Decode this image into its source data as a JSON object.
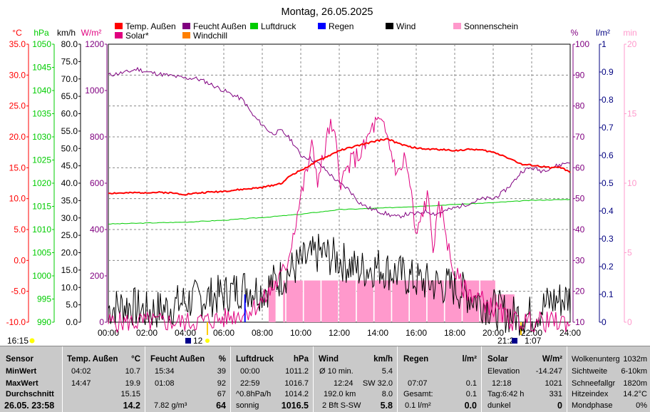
{
  "chart_data": {
    "type": "line",
    "title": "Montag, 26.05.2025",
    "legend": [
      {
        "label": "Temp. Außen",
        "color": "#ff0000"
      },
      {
        "label": "Feucht Außen",
        "color": "#800080"
      },
      {
        "label": "Luftdruck",
        "color": "#00cc00"
      },
      {
        "label": "Regen",
        "color": "#0000ff"
      },
      {
        "label": "Wind",
        "color": "#000000"
      },
      {
        "label": "Sonnenschein",
        "color": "#ff99cc"
      },
      {
        "label": "Solar*",
        "color": "#e0007f"
      },
      {
        "label": "Windchill",
        "color": "#ff8000"
      }
    ],
    "axis_units": {
      "temp": "°C",
      "pressure": "hPa",
      "wind": "km/h",
      "solar": "W/m²",
      "humidity": "%",
      "rain": "l/m²",
      "sun": "min"
    },
    "x_ticks": [
      "00:00",
      "02:00",
      "04:00",
      "06:00",
      "08:00",
      "10:00",
      "12:00",
      "14:00",
      "16:00",
      "18:00",
      "20:00",
      "22:00",
      "24:00"
    ],
    "temp_ticks": [
      "35.0",
      "30.0",
      "25.0",
      "20.0",
      "15.0",
      "10.0",
      "5.0",
      "0.0",
      "-5.0",
      "-10.0"
    ],
    "pressure_ticks": [
      "1050",
      "1045",
      "1040",
      "1035",
      "1030",
      "1025",
      "1020",
      "1015",
      "1010",
      "1005",
      "1000",
      "995",
      "990"
    ],
    "wind_ticks": [
      "80.0",
      "75.0",
      "70.0",
      "65.0",
      "60.0",
      "55.0",
      "50.0",
      "45.0",
      "40.0",
      "35.0",
      "30.0",
      "25.0",
      "20.0",
      "15.0",
      "10.0",
      "5.0",
      "0.0"
    ],
    "solar_ticks": [
      "1200",
      "1000",
      "800",
      "600",
      "400",
      "200",
      "0"
    ],
    "humidity_ticks": [
      "100",
      "90",
      "80",
      "70",
      "60",
      "50",
      "40",
      "30",
      "20",
      "10"
    ],
    "rain_ticks": [
      "1",
      "0.9",
      "0.8",
      "0.7",
      "0.6",
      "0.5",
      "0.4",
      "0.3",
      "0.2",
      "0.1",
      "0"
    ],
    "sun_ticks": [
      "20",
      "15",
      "10",
      "5",
      "0"
    ],
    "below_axis": {
      "sunrise": "16:15",
      "sunrise_mark": "12",
      "sunset_mark": "21:2",
      "sunset_extra": "1:07"
    },
    "series": [
      {
        "name": "Temp. Außen",
        "x": [
          0,
          1,
          2,
          3,
          4,
          5,
          6,
          7,
          8,
          9,
          9.5,
          10,
          10.5,
          11,
          11.5,
          12,
          12.5,
          13,
          13.5,
          14,
          14.5,
          15,
          15.5,
          16,
          16.5,
          17,
          17.5,
          18,
          18.5,
          19,
          19.5,
          20,
          20.5,
          21,
          21.5,
          22,
          22.5,
          23,
          23.5,
          24
        ],
        "y": [
          10.9,
          10.9,
          11.0,
          11.0,
          10.7,
          11.0,
          11.2,
          11.5,
          11.8,
          12.5,
          13.8,
          14.6,
          15.4,
          16.3,
          17.0,
          17.8,
          18.2,
          18.6,
          19.0,
          19.4,
          19.7,
          19.0,
          18.5,
          18.2,
          18.0,
          18.0,
          17.9,
          17.8,
          17.9,
          18.0,
          17.8,
          17.5,
          17.0,
          16.3,
          15.5,
          15.4,
          15.2,
          15.0,
          15.1,
          14.2
        ]
      },
      {
        "name": "Feucht Außen",
        "x": [
          0,
          1,
          1.5,
          2,
          3,
          4,
          4.5,
          5,
          6,
          7,
          7.5,
          8,
          8.5,
          9,
          9.5,
          10,
          10.5,
          11,
          11.5,
          12,
          12.5,
          13,
          13.5,
          14,
          14.5,
          15,
          15.5,
          16,
          16.5,
          17,
          17.5,
          18,
          18.5,
          19,
          19.5,
          20,
          20.5,
          21,
          21.5,
          22,
          22.5,
          23,
          23.5,
          24
        ],
        "y": [
          90,
          91,
          92,
          91,
          90,
          89,
          89,
          88,
          85,
          82,
          77,
          74,
          71,
          72,
          69,
          64,
          63,
          61,
          58,
          55,
          53,
          49,
          47,
          46,
          45,
          44,
          45,
          45,
          46,
          45,
          46,
          47,
          48,
          49,
          50,
          50,
          52,
          55,
          59,
          60,
          59,
          60,
          61,
          62
        ]
      },
      {
        "name": "Luftdruck",
        "x": [
          0,
          2,
          4,
          6,
          8,
          10,
          12,
          14,
          16,
          18,
          20,
          22,
          24
        ],
        "y": [
          1011.2,
          1011.4,
          1011.6,
          1012.0,
          1012.6,
          1013.3,
          1014.3,
          1014.6,
          1015.0,
          1015.4,
          1015.8,
          1016.3,
          1016.5
        ]
      },
      {
        "name": "Wind",
        "x": [
          0,
          1,
          2,
          3,
          4,
          5,
          6,
          7,
          8,
          9,
          10,
          11,
          12,
          13,
          14,
          15,
          16,
          17,
          18,
          19,
          20,
          21,
          22,
          23,
          24
        ],
        "y": [
          4,
          5,
          3,
          4,
          6,
          7,
          8,
          10,
          9,
          13,
          17,
          20,
          18,
          15,
          16,
          14,
          12,
          11,
          10,
          7,
          4,
          2,
          2,
          6,
          7
        ]
      },
      {
        "name": "Solar*",
        "x": [
          0,
          4,
          5,
          6,
          7,
          7.5,
          8,
          8.5,
          9,
          9.3,
          9.6,
          10,
          10.3,
          10.6,
          10.9,
          11.2,
          11.5,
          11.8,
          12.1,
          12.4,
          12.7,
          13,
          13.3,
          13.6,
          13.9,
          14.2,
          14.5,
          14.8,
          15.1,
          15.4,
          15.7,
          16,
          16.3,
          16.6,
          16.9,
          17.2,
          17.5,
          17.8,
          18.1,
          18.4,
          18.7,
          19,
          19.5,
          20,
          20.5,
          21,
          24
        ],
        "y": [
          0,
          0,
          5,
          15,
          40,
          60,
          90,
          140,
          200,
          260,
          380,
          540,
          650,
          760,
          610,
          720,
          850,
          780,
          600,
          660,
          700,
          720,
          750,
          820,
          860,
          850,
          800,
          700,
          630,
          720,
          580,
          350,
          470,
          540,
          320,
          500,
          420,
          250,
          200,
          150,
          130,
          120,
          90,
          60,
          30,
          5,
          0
        ]
      },
      {
        "name": "Sonnenschein",
        "x": [
          0,
          8,
          8.3,
          8.6,
          9,
          10,
          11,
          12,
          13,
          14,
          15,
          16,
          17,
          18,
          19,
          20,
          21,
          24
        ],
        "y": [
          0,
          0,
          3,
          0,
          3,
          3,
          3,
          3,
          3,
          3,
          3,
          3,
          3,
          3,
          3,
          2,
          0,
          0
        ]
      },
      {
        "name": "Regen",
        "x": [
          7.1
        ],
        "y": [
          0.1
        ]
      }
    ],
    "stats_panel": {
      "sensor": {
        "header": "Sensor",
        "rows": [
          "MinWert",
          "MaxWert",
          "Durchschnitt"
        ],
        "footer": "26.05. 23:58"
      },
      "temp": {
        "header": "Temp. Außen",
        "unit": "°C",
        "min_time": "04:02",
        "min": "10.7",
        "max_time": "14:47",
        "max": "19.9",
        "avg": "15.15",
        "current": "14.2"
      },
      "humidity": {
        "header": "Feucht Außen",
        "unit": "%",
        "min_time": "15:34",
        "min": "39",
        "max_time": "01:08",
        "max": "92",
        "avg": "67",
        "extra": "7.82 g/m³",
        "current": "64"
      },
      "pressure": {
        "header": "Luftdruck",
        "unit": "hPa",
        "min_time": "00:00",
        "min": "1011.2",
        "max_time": "22:59",
        "max": "1016.7",
        "trend": "^0.8hPa/h",
        "avg": "1014.2",
        "state": "sonnig",
        "current": "1016.5"
      },
      "wind": {
        "header": "Wind",
        "unit": "km/h",
        "avg_label": "Ø 10 min.",
        "avg": "5.4",
        "gust_time": "12:24",
        "gust": "SW 32.0",
        "distance": "192.0 km",
        "distance_val": "8.0",
        "current_text": "2 Bft S-SW",
        "current": "5.8"
      },
      "rain": {
        "header": "Regen",
        "unit": "l/m²",
        "time": "07:07",
        "val": "0.1",
        "total_label": "Gesamt:",
        "total": "0.1",
        "rate": "0.1 l/m²",
        "current": "0.0"
      },
      "solar": {
        "header": "Solar",
        "unit": "W/m²",
        "elev_label": "Elevation",
        "elev": "-14.247",
        "max_time": "12:18",
        "max": "1021",
        "day_label": "Tag:6:42 h",
        "day_val": "331",
        "state": "dunkel",
        "current": "0"
      },
      "misc": [
        {
          "label": "Wolkenunterg",
          "value": "1032m"
        },
        {
          "label": "Sichtweite",
          "value": "6-10km"
        },
        {
          "label": "Schneefallgr",
          "value": "1820m"
        },
        {
          "label": "Hitzeindex",
          "value": "14.2°C"
        },
        {
          "label": "Mondphase",
          "value": "0%"
        }
      ]
    }
  },
  "colors": {
    "temp": "#ff0000",
    "humidity": "#800080",
    "pressure": "#00cc00",
    "rain": "#0000ff",
    "wind": "#000000",
    "sun": "#ff99cc",
    "solar": "#e0007f",
    "windchill": "#ff8000",
    "sun_axis": "#ff99cc",
    "rain_axis": "#000080"
  }
}
